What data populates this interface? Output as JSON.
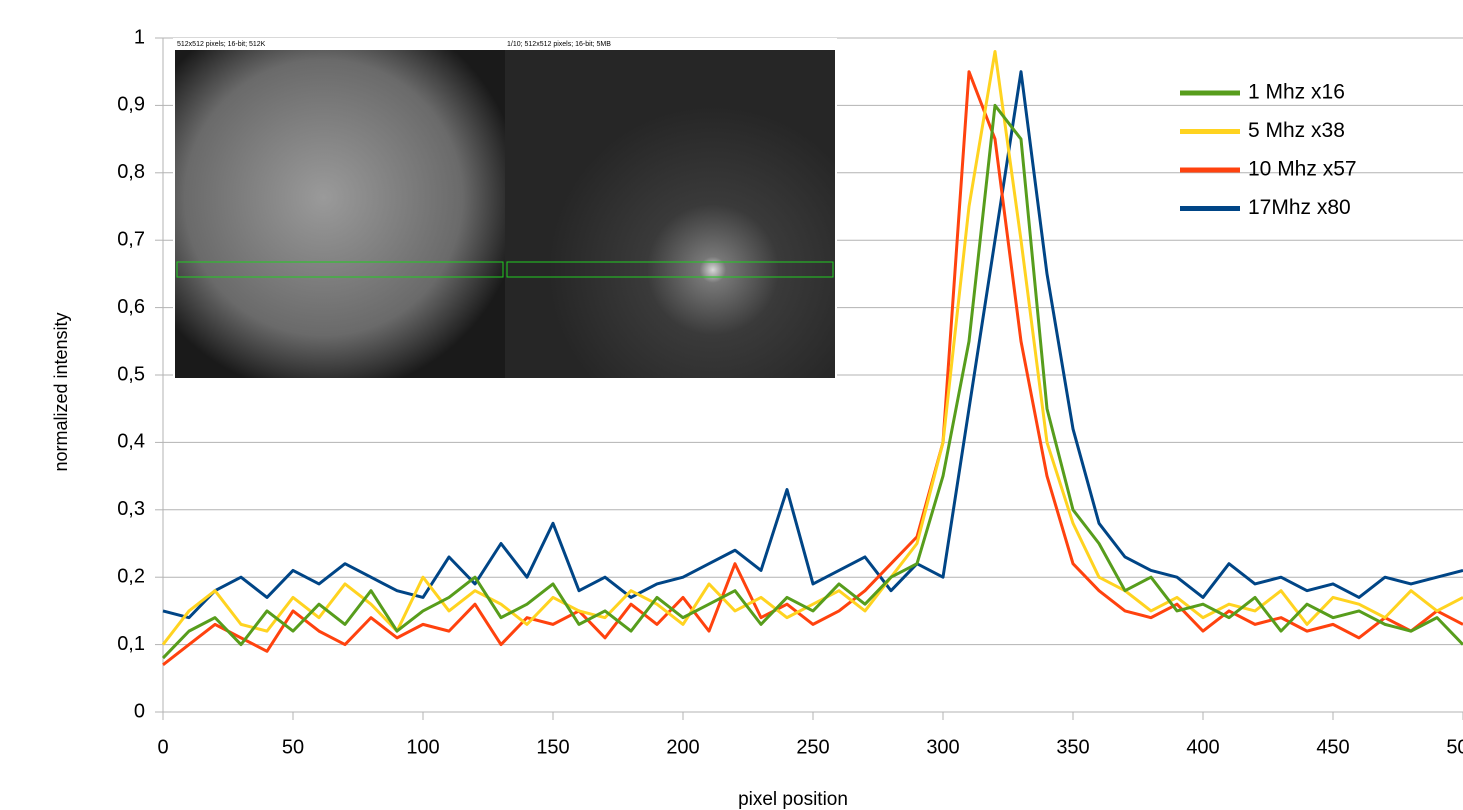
{
  "chart_data": {
    "type": "line",
    "x_label": "pixel position",
    "y_label": "normalized intensity",
    "annotations": [
      "512x512 pixels; 16-bit; 512K",
      "1/10; 512x512 pixels; 16-bit; 5MB"
    ],
    "x": [
      0,
      10,
      20,
      30,
      40,
      50,
      60,
      70,
      80,
      90,
      100,
      110,
      120,
      130,
      140,
      150,
      160,
      170,
      180,
      190,
      200,
      210,
      220,
      230,
      240,
      250,
      260,
      270,
      280,
      290,
      300,
      310,
      320,
      330,
      340,
      350,
      360,
      370,
      380,
      390,
      400,
      410,
      420,
      430,
      440,
      450,
      460,
      470,
      480,
      490,
      500
    ],
    "series": [
      {
        "name": "1 Mhz x16",
        "color": "#579d1c",
        "values": [
          0.08,
          0.12,
          0.14,
          0.1,
          0.15,
          0.12,
          0.16,
          0.13,
          0.18,
          0.12,
          0.15,
          0.17,
          0.2,
          0.14,
          0.16,
          0.19,
          0.13,
          0.15,
          0.12,
          0.17,
          0.14,
          0.16,
          0.18,
          0.13,
          0.17,
          0.15,
          0.19,
          0.16,
          0.2,
          0.22,
          0.35,
          0.55,
          0.9,
          0.85,
          0.45,
          0.3,
          0.25,
          0.18,
          0.2,
          0.15,
          0.16,
          0.14,
          0.17,
          0.12,
          0.16,
          0.14,
          0.15,
          0.13,
          0.12,
          0.14,
          0.1
        ]
      },
      {
        "name": "5 Mhz x38",
        "color": "#ffd320",
        "values": [
          0.1,
          0.15,
          0.18,
          0.13,
          0.12,
          0.17,
          0.14,
          0.19,
          0.16,
          0.12,
          0.2,
          0.15,
          0.18,
          0.16,
          0.13,
          0.17,
          0.15,
          0.14,
          0.18,
          0.16,
          0.13,
          0.19,
          0.15,
          0.17,
          0.14,
          0.16,
          0.18,
          0.15,
          0.2,
          0.25,
          0.4,
          0.75,
          0.98,
          0.7,
          0.4,
          0.28,
          0.2,
          0.18,
          0.15,
          0.17,
          0.14,
          0.16,
          0.15,
          0.18,
          0.13,
          0.17,
          0.16,
          0.14,
          0.18,
          0.15,
          0.17
        ]
      },
      {
        "name": "10 Mhz x57",
        "color": "#ff420e",
        "values": [
          0.07,
          0.1,
          0.13,
          0.11,
          0.09,
          0.15,
          0.12,
          0.1,
          0.14,
          0.11,
          0.13,
          0.12,
          0.16,
          0.1,
          0.14,
          0.13,
          0.15,
          0.11,
          0.16,
          0.13,
          0.17,
          0.12,
          0.22,
          0.14,
          0.16,
          0.13,
          0.15,
          0.18,
          0.22,
          0.26,
          0.4,
          0.95,
          0.85,
          0.55,
          0.35,
          0.22,
          0.18,
          0.15,
          0.14,
          0.16,
          0.12,
          0.15,
          0.13,
          0.14,
          0.12,
          0.13,
          0.11,
          0.14,
          0.12,
          0.15,
          0.13
        ]
      },
      {
        "name": "17Mhz x80",
        "color": "#004586",
        "values": [
          0.15,
          0.14,
          0.18,
          0.2,
          0.17,
          0.21,
          0.19,
          0.22,
          0.2,
          0.18,
          0.17,
          0.23,
          0.19,
          0.25,
          0.2,
          0.28,
          0.18,
          0.2,
          0.17,
          0.19,
          0.2,
          0.22,
          0.24,
          0.21,
          0.33,
          0.19,
          0.21,
          0.23,
          0.18,
          0.22,
          0.2,
          0.45,
          0.7,
          0.95,
          0.65,
          0.42,
          0.28,
          0.23,
          0.21,
          0.2,
          0.17,
          0.22,
          0.19,
          0.2,
          0.18,
          0.19,
          0.17,
          0.2,
          0.19,
          0.2,
          0.21
        ]
      }
    ],
    "xlim": [
      0,
      500
    ],
    "xticks": [
      0,
      50,
      100,
      150,
      200,
      250,
      300,
      350,
      400,
      450,
      500
    ],
    "ylim": [
      0,
      1
    ],
    "yticks": [
      0,
      {
        "value": 0.1,
        "label": "0,1"
      },
      {
        "value": 0.2,
        "label": "0,2"
      },
      {
        "value": 0.3,
        "label": "0,3"
      },
      {
        "value": 0.4,
        "label": "0,4"
      },
      {
        "value": 0.5,
        "label": "0,5"
      },
      {
        "value": 0.6,
        "label": "0,6"
      },
      {
        "value": 0.7,
        "label": "0,7"
      },
      {
        "value": 0.8,
        "label": "0,8"
      },
      {
        "value": 0.9,
        "label": "0,9"
      },
      1
    ],
    "grid": true,
    "legend": "upper right"
  }
}
